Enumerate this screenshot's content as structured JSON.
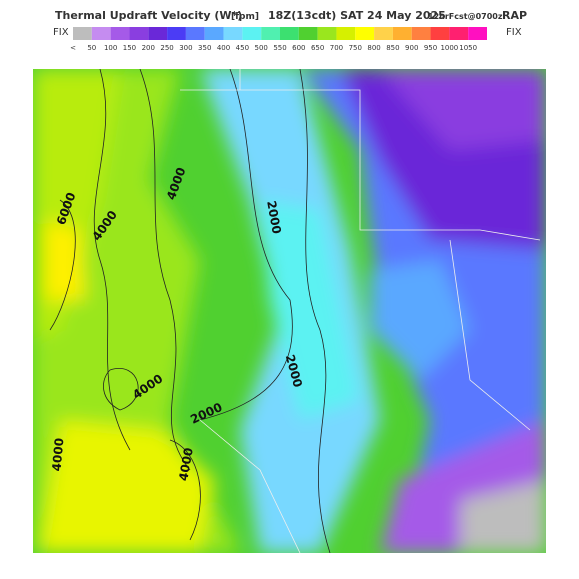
{
  "header": {
    "title": "Thermal Updraft Velocity (W*)",
    "units": "[fpm]",
    "valid_time": "18Z(13cdt) SAT 24 May 2025",
    "forecast": "12hrFcst@0700z",
    "model": "RAP"
  },
  "colorbar": {
    "left_label": "FIX",
    "right_label": "FIX",
    "labels": [
      "<",
      "50",
      "100",
      "150",
      "200",
      "250",
      "300",
      "350",
      "400",
      "450",
      "500",
      "550",
      "600",
      "650",
      "700",
      "750",
      "800",
      "850",
      "900",
      "950",
      "1000",
      "1050"
    ],
    "colors": [
      "#bdbdbd",
      "#c58cf0",
      "#a55ae8",
      "#8a3ee0",
      "#6a28d8",
      "#4b3cf5",
      "#5a78ff",
      "#5aa8ff",
      "#78d8ff",
      "#5cf2f2",
      "#50f0b0",
      "#3ce070",
      "#50d030",
      "#9ae61e",
      "#d6f000",
      "#ffff00",
      "#ffd24a",
      "#ffb030",
      "#ff8040",
      "#ff4040",
      "#ff2070",
      "#ff10c0"
    ]
  },
  "map": {
    "contour_labels": [
      "6000",
      "4000",
      "4000",
      "2000",
      "2000",
      "4000",
      "2000",
      "4000",
      "4000"
    ]
  }
}
